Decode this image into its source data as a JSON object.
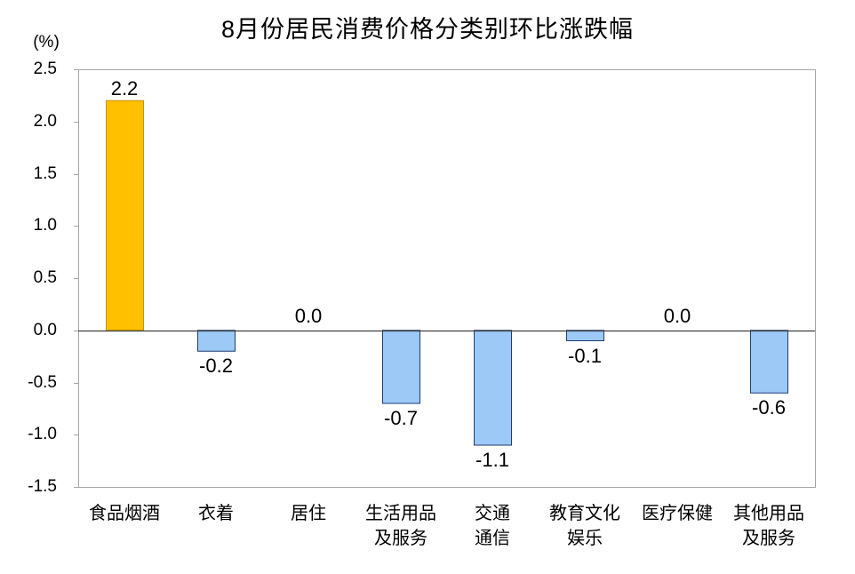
{
  "chart_data": {
    "type": "bar",
    "title": "8月份居民消费价格分类别环比涨跌幅",
    "ylabel": "(%)",
    "xlabel": "",
    "categories": [
      "食品烟酒",
      "衣着",
      "居住",
      "生活用品\n及服务",
      "交通\n通信",
      "教育文化\n娱乐",
      "医疗保健",
      "其他用品\n及服务"
    ],
    "values": [
      2.2,
      -0.2,
      0.0,
      -0.7,
      -1.1,
      -0.1,
      0.0,
      -0.6
    ],
    "ylim": [
      -1.5,
      2.5
    ],
    "yticks": [
      2.5,
      2.0,
      1.5,
      1.0,
      0.5,
      0.0,
      -0.5,
      -1.0,
      -1.5
    ],
    "grid": false,
    "legend": false,
    "data_labels": true,
    "bar_colors": [
      "#FFC000",
      "#9CC9F5",
      "#9CC9F5",
      "#9CC9F5",
      "#9CC9F5",
      "#9CC9F5",
      "#9CC9F5",
      "#9CC9F5"
    ],
    "bar_edge_colors": [
      "#C9900A",
      "#1F3B73",
      "#1F3B73",
      "#1F3B73",
      "#1F3B73",
      "#1F3B73",
      "#1F3B73",
      "#1F3B73"
    ],
    "frame_color": "#A6A6A6",
    "zero_line_color": "#404040"
  }
}
